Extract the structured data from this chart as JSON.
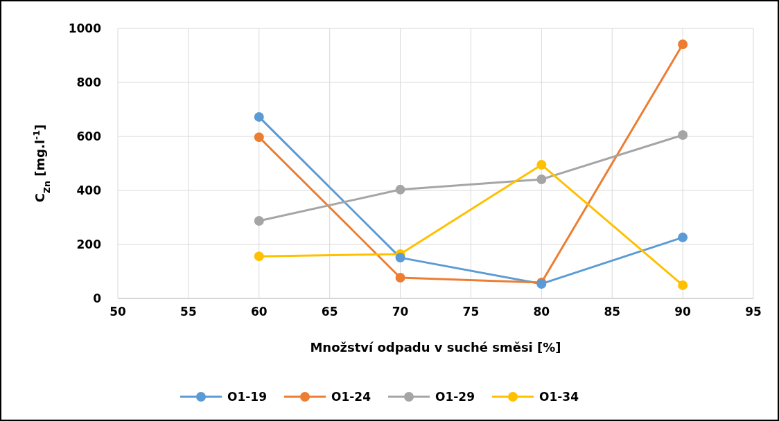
{
  "chart_data": {
    "type": "line",
    "xlabel": "Množství odpadu v suché směsi [%]",
    "ylabel": "C$_{Zn}$ [mg.l$^{-1}$]",
    "x": [
      60,
      70,
      80,
      90
    ],
    "xlim": [
      50,
      95
    ],
    "xticks": [
      50,
      55,
      60,
      65,
      70,
      75,
      80,
      85,
      90,
      95
    ],
    "ylim": [
      0,
      1000
    ],
    "yticks": [
      0,
      200,
      400,
      600,
      800,
      1000
    ],
    "grid": true,
    "legend": "bottom",
    "marker": "circle",
    "line_style": "solid",
    "series": [
      {
        "name": "O1-19",
        "color": "#5b9bd5",
        "values": [
          672,
          151,
          54,
          226
        ]
      },
      {
        "name": "O1-24",
        "color": "#ed7d31",
        "values": [
          597,
          77,
          59,
          941
        ]
      },
      {
        "name": "O1-29",
        "color": "#a5a5a5",
        "values": [
          287,
          403,
          441,
          605
        ]
      },
      {
        "name": "O1-34",
        "color": "#ffc000",
        "values": [
          156,
          164,
          495,
          49
        ]
      }
    ]
  }
}
